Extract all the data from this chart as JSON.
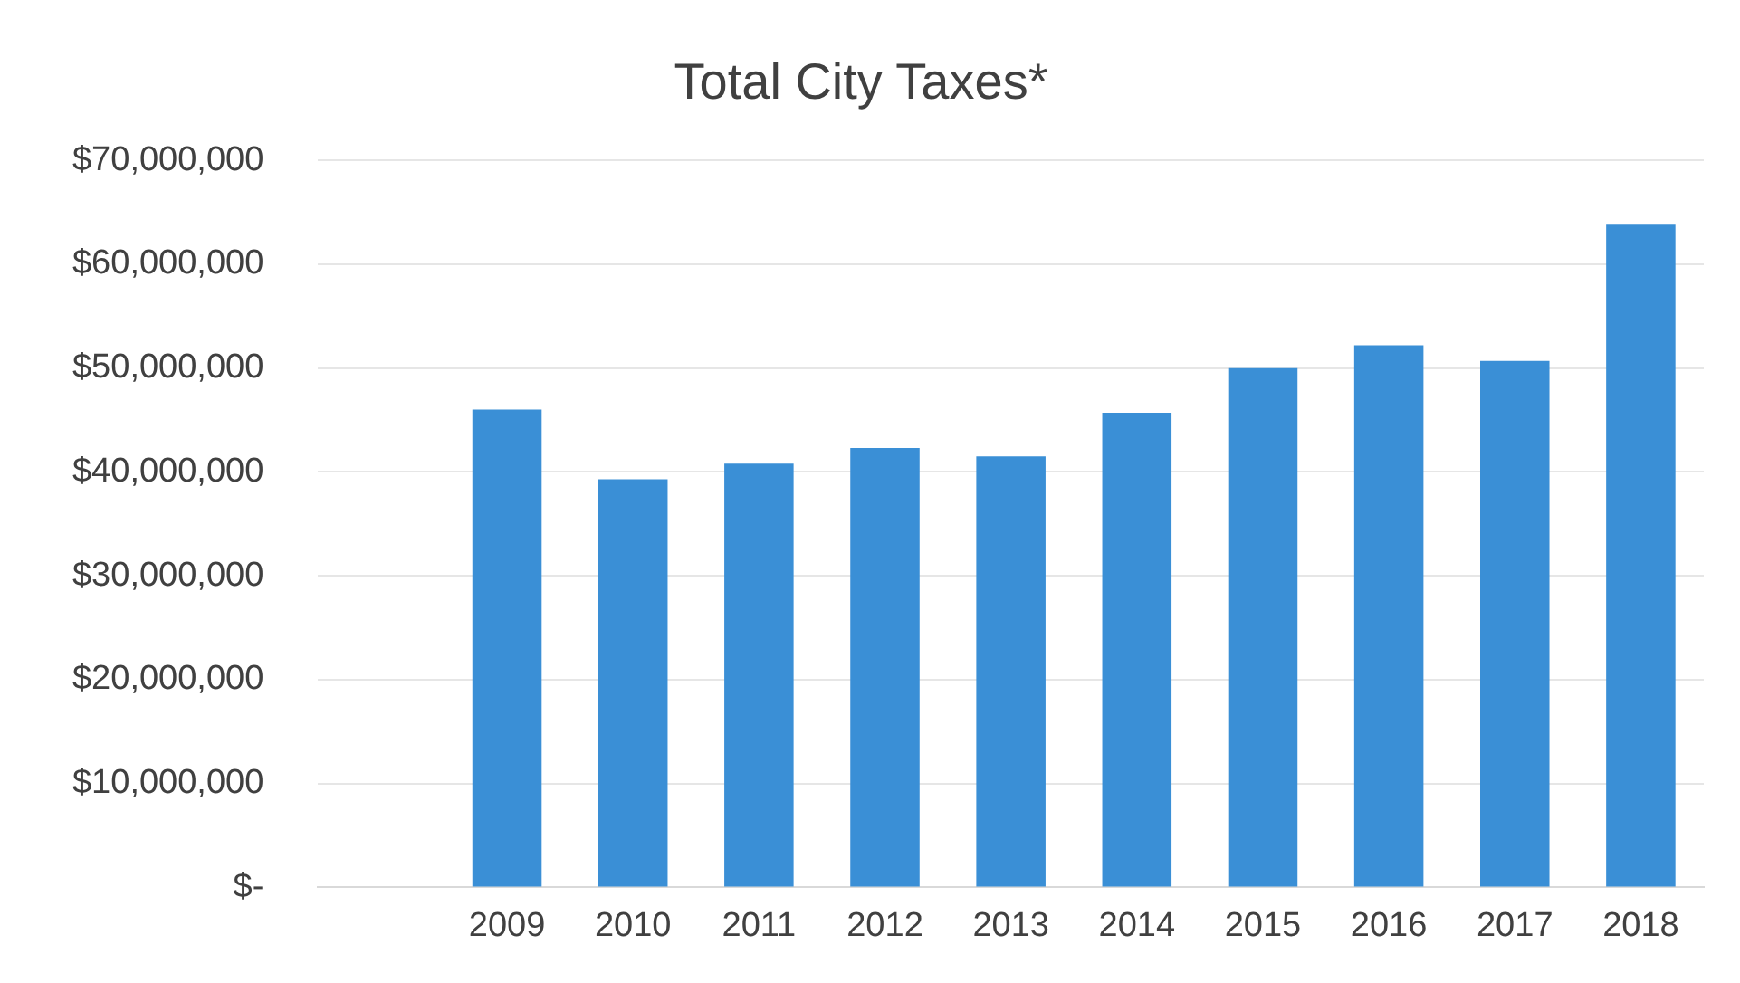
{
  "chart_data": {
    "type": "bar",
    "title": "Total City Taxes*",
    "categories": [
      null,
      "2009",
      "2010",
      "2011",
      "2012",
      "2013",
      "2014",
      "2015",
      "2016",
      "2017",
      "2018"
    ],
    "values": [
      null,
      46000000,
      39300000,
      40800000,
      42300000,
      41500000,
      45700000,
      50000000,
      52200000,
      50700000,
      63800000
    ],
    "color": "#3a8fd6",
    "ylim": [
      0,
      70000000
    ],
    "yticks": [
      {
        "value": 0,
        "label": "$-"
      },
      {
        "value": 10000000,
        "label": "$10,000,000"
      },
      {
        "value": 20000000,
        "label": "$20,000,000"
      },
      {
        "value": 30000000,
        "label": "$30,000,000"
      },
      {
        "value": 40000000,
        "label": "$40,000,000"
      },
      {
        "value": 50000000,
        "label": "$50,000,000"
      },
      {
        "value": 60000000,
        "label": "$60,000,000"
      },
      {
        "value": 70000000,
        "label": "$70,000,000"
      }
    ],
    "grid": "y"
  }
}
